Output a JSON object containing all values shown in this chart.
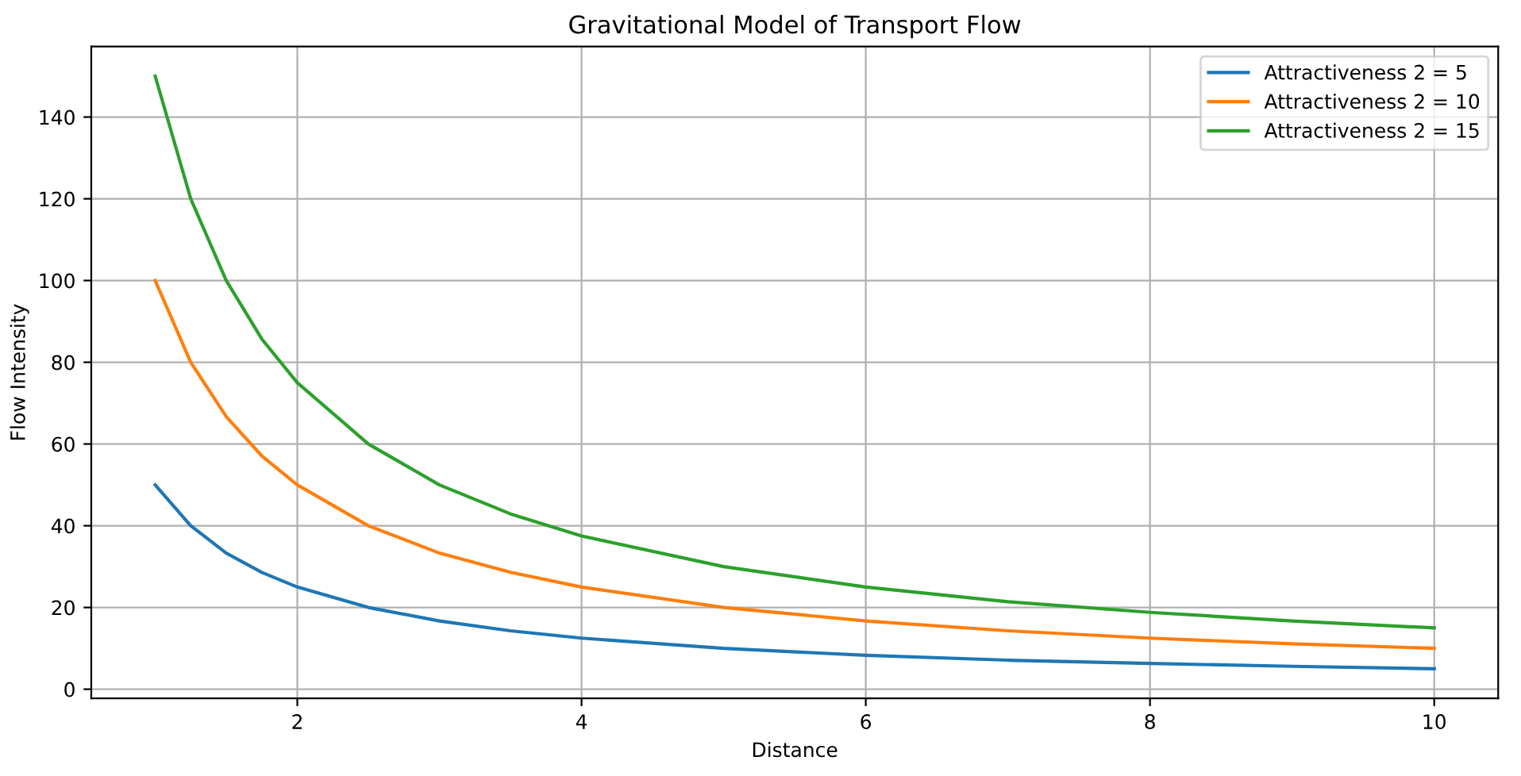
{
  "chart_data": {
    "type": "line",
    "title": "Gravitational Model of Transport Flow",
    "xlabel": "Distance",
    "ylabel": "Flow Intensity",
    "x": [
      1,
      1.25,
      1.5,
      1.75,
      2,
      2.5,
      3,
      3.5,
      4,
      5,
      6,
      7,
      8,
      9,
      10
    ],
    "series": [
      {
        "name": "Attractiveness 2 = 5",
        "color": "#1f77b4",
        "values": [
          50,
          40,
          33.3,
          28.6,
          25,
          20,
          16.7,
          14.3,
          12.5,
          10,
          8.3,
          7.1,
          6.3,
          5.6,
          5
        ]
      },
      {
        "name": "Attractiveness 2 = 10",
        "color": "#ff7f0e",
        "values": [
          100,
          80,
          66.7,
          57.1,
          50,
          40,
          33.3,
          28.6,
          25,
          20,
          16.7,
          14.3,
          12.5,
          11.1,
          10
        ]
      },
      {
        "name": "Attractiveness 2 = 15",
        "color": "#2ca02c",
        "values": [
          150,
          120,
          100,
          85.7,
          75,
          60,
          50,
          42.9,
          37.5,
          30,
          25,
          21.4,
          18.8,
          16.7,
          15
        ]
      }
    ],
    "xlim": [
      0.55,
      10.45
    ],
    "ylim": [
      -2.25,
      157.25
    ],
    "xticks": [
      2,
      4,
      6,
      8,
      10
    ],
    "yticks": [
      0,
      20,
      40,
      60,
      80,
      100,
      120,
      140
    ],
    "grid": true,
    "legend": "top right"
  }
}
